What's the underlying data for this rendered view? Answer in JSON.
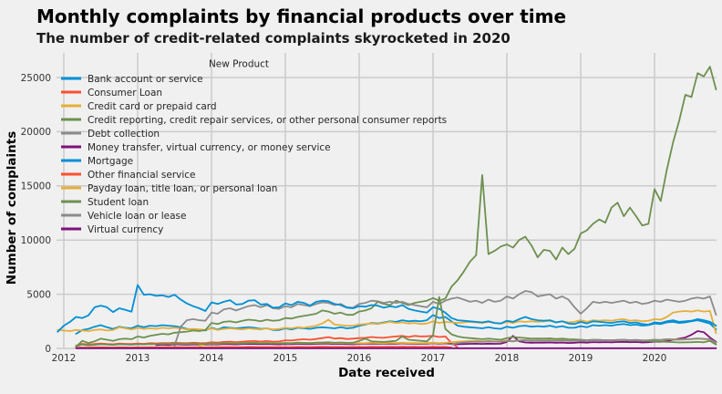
{
  "page": {
    "title": "Monthly complaints by financial products over time",
    "subtitle": "The number of credit-related complaints skyrocketed in 2020"
  },
  "chart_data": {
    "type": "line",
    "title": "Monthly complaints by financial products over time",
    "subtitle": "The number of credit-related complaints skyrocketed in 2020",
    "xlabel": "Date received",
    "ylabel": "Number of complaints",
    "legend_title": "New Product",
    "legend_position": "upper-left",
    "grid": true,
    "background_color": "#f0f0f0",
    "grid_color": "#cbcbcb",
    "text_color": "#333333",
    "x_ticks": [
      2012,
      2013,
      2014,
      2015,
      2016,
      2017,
      2018,
      2019,
      2020
    ],
    "y_ticks": [
      0,
      5000,
      10000,
      15000,
      20000,
      25000
    ],
    "ylim": [
      0,
      27000
    ],
    "x_unit": "monthly, from each series start date",
    "series": [
      {
        "name": "Bank account or service",
        "color": "#008fd5",
        "start": "2012-03",
        "values": [
          1350,
          1700,
          1800,
          2000,
          2150,
          1950,
          1800,
          2000,
          1900,
          1850,
          2100,
          1950,
          2100,
          2050,
          2150,
          2100,
          2050,
          1950,
          1800,
          1750,
          1700,
          1650,
          1900,
          1750,
          1950,
          1900,
          1850,
          1900,
          1950,
          1900,
          1800,
          1850,
          1700,
          1700,
          1850,
          1750,
          1900,
          1850,
          1800,
          1900,
          1950,
          1900,
          1850,
          1950,
          1850,
          1900,
          2100,
          2200,
          2350,
          2300,
          2400,
          2500,
          2450,
          2600,
          2500,
          2550,
          2500,
          2600,
          3080,
          2800,
          2900,
          2500,
          2100,
          2000,
          1950,
          1900,
          1850,
          1950,
          1850,
          1800,
          2000,
          1900,
          2050,
          2100,
          2000,
          2050,
          2000,
          2100,
          1950,
          2050,
          1900,
          1900,
          2050,
          1950,
          2150,
          2100,
          2150,
          2100,
          2200,
          2250,
          2150,
          2200,
          2100,
          2150,
          2300,
          2250,
          2400,
          2450,
          2350,
          2400,
          2500,
          2600,
          2450,
          2300,
          1750
        ]
      },
      {
        "name": "Consumer Loan",
        "color": "#fc4f30",
        "start": "2012-03",
        "values": [
          250,
          420,
          350,
          400,
          450,
          400,
          380,
          450,
          420,
          400,
          450,
          420,
          480,
          460,
          500,
          480,
          520,
          500,
          480,
          520,
          490,
          480,
          560,
          530,
          600,
          620,
          580,
          620,
          660,
          680,
          630,
          680,
          620,
          640,
          750,
          720,
          800,
          850,
          800,
          870,
          950,
          1040,
          900,
          950,
          870,
          900,
          950,
          980,
          1050,
          1000,
          980,
          1050,
          1100,
          1150,
          1050,
          1150,
          1100,
          1120,
          1150,
          1050,
          1100,
          500,
          100
        ]
      },
      {
        "name": "Credit card or prepaid card",
        "color": "#e5ae38",
        "start": "2011-12",
        "values": [
          1720,
          1650,
          1600,
          1700,
          1650,
          1600,
          1700,
          1750,
          1650,
          1700,
          1950,
          1850,
          1750,
          1900,
          1800,
          1850,
          1800,
          1900,
          1850,
          1900,
          1850,
          1750,
          1800,
          1750,
          1700,
          1850,
          1700,
          1800,
          1850,
          1800,
          1750,
          1850,
          1800,
          1750,
          1850,
          1750,
          1800,
          1900,
          1850,
          1950,
          1900,
          2000,
          2100,
          2300,
          2650,
          2200,
          2150,
          2100,
          2100,
          2200,
          2250,
          2300,
          2250,
          2350,
          2450,
          2350,
          2400,
          2300,
          2350,
          2250,
          2300,
          2500,
          2350,
          2450,
          2400,
          2350,
          2400,
          2450,
          2400,
          2350,
          2450,
          2350,
          2300,
          2450,
          2350,
          2500,
          2450,
          2500,
          2450,
          2500,
          2550,
          2400,
          2500,
          2400,
          2450,
          2600,
          2450,
          2600,
          2550,
          2600,
          2550,
          2650,
          2700,
          2550,
          2600,
          2500,
          2550,
          2700,
          2650,
          2900,
          3300,
          3400,
          3450,
          3400,
          3500,
          3400,
          3450,
          1400
        ]
      },
      {
        "name": "Credit reporting, credit repair services, or other personal consumer reports",
        "color": "#6d904f",
        "start": "2012-03",
        "values": [
          150,
          700,
          500,
          650,
          900,
          800,
          700,
          850,
          900,
          850,
          1100,
          1000,
          1150,
          1250,
          1350,
          1300,
          1450,
          1500,
          1550,
          1650,
          1600,
          1700,
          2350,
          2250,
          2450,
          2500,
          2400,
          2550,
          2650,
          2600,
          2500,
          2650,
          2550,
          2600,
          2800,
          2750,
          2900,
          3000,
          3100,
          3200,
          3500,
          3400,
          3200,
          3300,
          3100,
          3100,
          3400,
          3500,
          3700,
          4300,
          4100,
          4000,
          4400,
          4200,
          4000,
          4200,
          4300,
          4400,
          4650,
          4400,
          4600,
          5700,
          6300,
          7100,
          8000,
          8600,
          16000,
          8700,
          9000,
          9400,
          9600,
          9300,
          10000,
          10300,
          9500,
          8400,
          9100,
          9000,
          8200,
          9300,
          8700,
          9200,
          10600,
          10900,
          11500,
          11900,
          11600,
          13000,
          13450,
          12200,
          13000,
          12200,
          11350,
          11500,
          14700,
          13600,
          16500,
          19000,
          21000,
          23400,
          23200,
          25400,
          25100,
          26000,
          23900
        ]
      },
      {
        "name": "Debt collection",
        "color": "#8b8b8b",
        "start": "2013-07",
        "values": [
          250,
          2000,
          2600,
          2700,
          2600,
          2550,
          3300,
          3200,
          3600,
          3700,
          3500,
          3700,
          3900,
          4000,
          3800,
          4000,
          3700,
          3650,
          3900,
          3800,
          4100,
          4000,
          3900,
          4100,
          4250,
          4200,
          4000,
          4100,
          3800,
          3750,
          4100,
          4200,
          4400,
          4350,
          4200,
          4300,
          4200,
          4300,
          4100,
          4000,
          3900,
          3800,
          4300,
          4100,
          4400,
          4600,
          4700,
          4500,
          4300,
          4400,
          4200,
          4500,
          4300,
          4400,
          4800,
          4600,
          5000,
          5300,
          5200,
          4800,
          4900,
          5000,
          4600,
          4800,
          4500,
          3800,
          3200,
          3700,
          4300,
          4200,
          4300,
          4200,
          4300,
          4400,
          4200,
          4300,
          4100,
          4200,
          4400,
          4300,
          4500,
          4400,
          4300,
          4400,
          4600,
          4700,
          4600,
          4800,
          3100
        ]
      },
      {
        "name": "Money transfer, virtual currency, or money service",
        "color": "#810f7c",
        "start": "2013-04",
        "values": [
          300,
          350,
          320,
          380,
          360,
          340,
          370,
          350,
          330,
          380,
          360,
          400,
          390,
          370,
          400,
          420,
          410,
          390,
          410,
          380,
          370,
          400,
          380,
          420,
          400,
          390,
          420,
          440,
          430,
          400,
          420,
          390,
          380,
          420,
          430,
          450,
          440,
          430,
          450,
          440,
          460,
          430,
          440,
          420,
          430,
          470,
          440,
          460,
          420,
          380,
          400,
          420,
          430,
          410,
          440,
          420,
          430,
          600,
          1150,
          650,
          550,
          520,
          540,
          530,
          550,
          510,
          540,
          500,
          520,
          560,
          530,
          580,
          560,
          580,
          560,
          590,
          610,
          570,
          590,
          550,
          570,
          620,
          600,
          700,
          800,
          900,
          1000,
          1250,
          1600,
          1500,
          1000,
          600
        ]
      },
      {
        "name": "Mortgage",
        "color": "#008fd5",
        "start": "2011-12",
        "values": [
          1540,
          2100,
          2450,
          2900,
          2800,
          3050,
          3800,
          3950,
          3800,
          3350,
          3700,
          3550,
          3380,
          5850,
          4950,
          5000,
          4850,
          4900,
          4750,
          4950,
          4500,
          4150,
          3900,
          3700,
          3450,
          4250,
          4100,
          4300,
          4450,
          4050,
          4100,
          4400,
          4450,
          4050,
          4100,
          3750,
          3800,
          4150,
          4000,
          4300,
          4200,
          3950,
          4300,
          4400,
          4350,
          4100,
          4000,
          3750,
          3700,
          3900,
          3850,
          4000,
          3950,
          3750,
          3900,
          3800,
          4000,
          3650,
          3500,
          3400,
          3300,
          3800,
          3650,
          3300,
          2800,
          2600,
          2550,
          2500,
          2450,
          2400,
          2500,
          2350,
          2300,
          2550,
          2450,
          2700,
          2900,
          2700,
          2600,
          2550,
          2600,
          2400,
          2500,
          2300,
          2250,
          2450,
          2300,
          2500,
          2450,
          2400,
          2350,
          2450,
          2500,
          2350,
          2400,
          2250,
          2200,
          2400,
          2350,
          2500,
          2600,
          2450,
          2500,
          2550,
          2700,
          2600,
          2450,
          2100
        ]
      },
      {
        "name": "Other financial service",
        "color": "#fc4f30",
        "start": "2012-03",
        "values": [
          60,
          80,
          70,
          90,
          100,
          90,
          80,
          100,
          90,
          85,
          100,
          90,
          110,
          100,
          120,
          110,
          120,
          110,
          100,
          115,
          105,
          100,
          120,
          110,
          130,
          125,
          115,
          130,
          140,
          135,
          125,
          135,
          120,
          125,
          130,
          120,
          140,
          135,
          125,
          140,
          150,
          145,
          135,
          145,
          130,
          135,
          140,
          135,
          150,
          145,
          140,
          150,
          145,
          155,
          140,
          150,
          135,
          140,
          150,
          140,
          145,
          80
        ]
      },
      {
        "name": "Payday loan, title loan, or personal loan",
        "color": "#e5ae38",
        "start": "2013-11",
        "values": [
          250,
          350,
          450,
          420,
          480,
          500,
          470,
          490,
          520,
          530,
          490,
          520,
          480,
          490,
          480,
          460,
          500,
          490,
          470,
          500,
          520,
          510,
          480,
          500,
          470,
          460,
          480,
          490,
          520,
          500,
          490,
          510,
          500,
          520,
          490,
          500,
          480,
          490,
          520,
          490,
          510,
          560,
          620,
          650,
          680,
          700,
          660,
          690,
          650,
          670,
          720,
          680,
          750,
          770,
          730,
          750,
          740,
          760,
          710,
          740,
          690,
          710,
          740,
          700,
          760,
          740,
          760,
          740,
          770,
          790,
          750,
          770,
          730,
          750,
          780,
          760,
          820,
          850,
          830,
          850,
          870,
          900,
          860,
          800,
          500
        ]
      },
      {
        "name": "Student loan",
        "color": "#6d904f",
        "start": "2012-03",
        "values": [
          200,
          350,
          280,
          320,
          380,
          350,
          320,
          380,
          360,
          340,
          380,
          360,
          400,
          390,
          420,
          400,
          430,
          420,
          400,
          430,
          410,
          400,
          450,
          430,
          480,
          470,
          450,
          480,
          500,
          510,
          470,
          500,
          460,
          470,
          500,
          480,
          530,
          510,
          490,
          530,
          550,
          560,
          520,
          550,
          510,
          520,
          700,
          900,
          650,
          620,
          600,
          650,
          700,
          1100,
          800,
          750,
          700,
          650,
          1200,
          4750,
          1800,
          1300,
          1100,
          1000,
          950,
          900,
          850,
          900,
          850,
          800,
          950,
          1050,
          1000,
          950,
          900,
          920,
          900,
          930,
          870,
          900,
          850,
          830,
          800,
          760,
          800,
          780,
          760,
          740,
          760,
          780,
          730,
          750,
          700,
          680,
          650,
          620,
          600,
          580,
          550,
          560,
          570,
          600,
          560,
          700,
          350
        ]
      },
      {
        "name": "Vehicle loan or lease",
        "color": "#8b8b8b",
        "start": "2017-04",
        "values": [
          350,
          500,
          550,
          600,
          620,
          600,
          650,
          620,
          600,
          680,
          650,
          720,
          740,
          700,
          720,
          710,
          730,
          690,
          720,
          680,
          700,
          730,
          700,
          760,
          740,
          760,
          750,
          780,
          800,
          760,
          780,
          740,
          760,
          800,
          780,
          850,
          820,
          800,
          830,
          870,
          920,
          880,
          850,
          550
        ]
      },
      {
        "name": "Virtual currency",
        "color": "#810f7c",
        "start": "2012-03",
        "flat_value": 15,
        "months": 105
      }
    ]
  }
}
